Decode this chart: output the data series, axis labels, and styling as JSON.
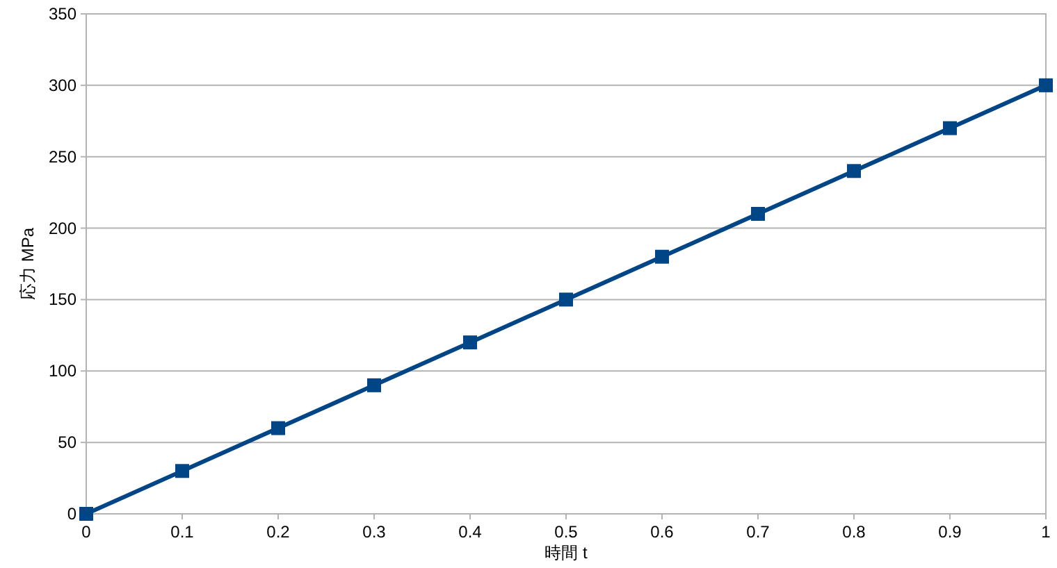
{
  "chart_data": {
    "type": "line",
    "xlabel": "時間 t",
    "ylabel": "応力 MPa",
    "x": [
      0,
      0.1,
      0.2,
      0.3,
      0.4,
      0.5,
      0.6,
      0.7,
      0.8,
      0.9,
      1
    ],
    "series": [
      {
        "color": "#004586",
        "values": [
          0,
          30,
          60,
          90,
          120,
          150,
          180,
          210,
          240,
          270,
          300
        ]
      }
    ],
    "xlim": [
      0,
      1
    ],
    "ylim": [
      0,
      350
    ],
    "xticks": [
      0,
      0.1,
      0.2,
      0.3,
      0.4,
      0.5,
      0.6,
      0.7,
      0.8,
      0.9,
      1
    ],
    "yticks": [
      0,
      50,
      100,
      150,
      200,
      250,
      300,
      350
    ],
    "grid": "y",
    "marker": "square",
    "line_style": "solid"
  }
}
